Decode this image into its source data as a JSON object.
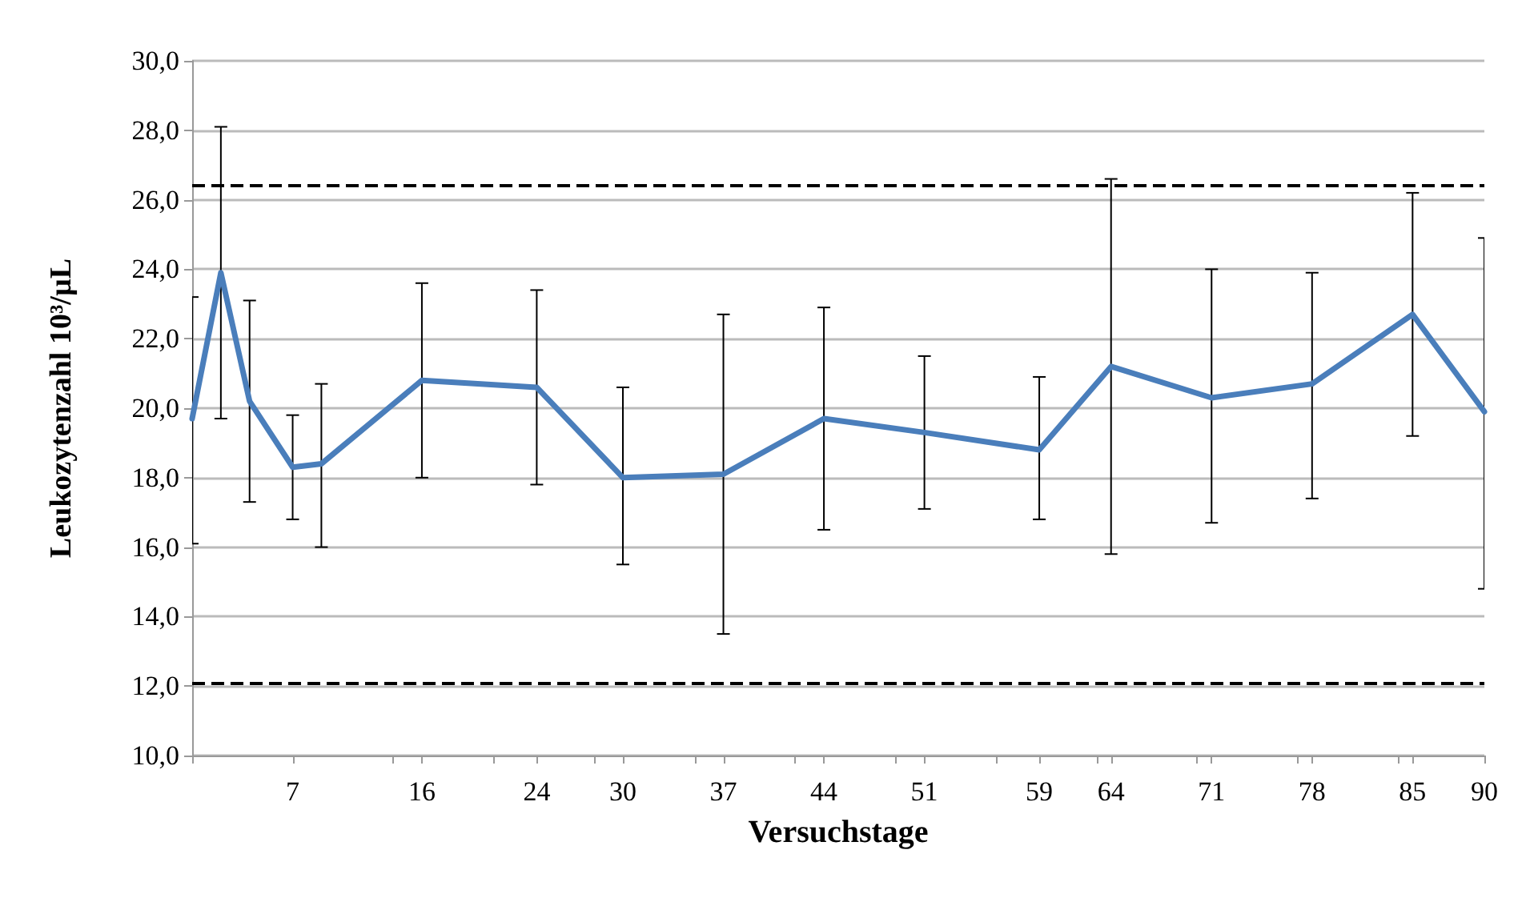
{
  "chart_data": {
    "type": "line",
    "xlabel": "Versuchstage",
    "ylabel": "Leukozytenzahl 10³/µL",
    "x": [
      0,
      2,
      4,
      7,
      9,
      16,
      24,
      30,
      37,
      44,
      51,
      59,
      64,
      71,
      78,
      85,
      90
    ],
    "series": [
      {
        "color": "#4a7ebb",
        "values": [
          19.7,
          23.9,
          20.2,
          18.3,
          18.4,
          20.8,
          20.6,
          18.0,
          18.1,
          19.7,
          19.3,
          18.8,
          21.2,
          20.3,
          20.7,
          22.7,
          19.9
        ],
        "errors": [
          [
            16.1,
            23.2
          ],
          [
            19.7,
            28.1
          ],
          [
            17.3,
            23.1
          ],
          [
            16.8,
            19.8
          ],
          [
            16.0,
            20.7
          ],
          [
            18.0,
            23.6
          ],
          [
            17.8,
            23.4
          ],
          [
            15.5,
            20.6
          ],
          [
            13.5,
            22.7
          ],
          [
            16.5,
            22.9
          ],
          [
            17.1,
            21.5
          ],
          [
            16.8,
            20.9
          ],
          [
            15.8,
            26.6
          ],
          [
            16.7,
            24.0
          ],
          [
            17.4,
            23.9
          ],
          [
            19.2,
            26.2
          ],
          [
            14.8,
            24.9
          ]
        ]
      }
    ],
    "xlim": [
      0,
      90
    ],
    "xticks": [
      {
        "value": 0,
        "label": null
      },
      {
        "value": 7,
        "label": "7"
      },
      {
        "value": 14,
        "label": null
      },
      {
        "value": 16,
        "label": "16"
      },
      {
        "value": 21,
        "label": null
      },
      {
        "value": 24,
        "label": "24"
      },
      {
        "value": 28,
        "label": null
      },
      {
        "value": 30,
        "label": "30"
      },
      {
        "value": 35,
        "label": null
      },
      {
        "value": 37,
        "label": "37"
      },
      {
        "value": 42,
        "label": null
      },
      {
        "value": 44,
        "label": "44"
      },
      {
        "value": 49,
        "label": null
      },
      {
        "value": 51,
        "label": "51"
      },
      {
        "value": 56,
        "label": null
      },
      {
        "value": 59,
        "label": "59"
      },
      {
        "value": 63,
        "label": null
      },
      {
        "value": 64,
        "label": "64"
      },
      {
        "value": 70,
        "label": null
      },
      {
        "value": 71,
        "label": "71"
      },
      {
        "value": 77,
        "label": null
      },
      {
        "value": 78,
        "label": "78"
      },
      {
        "value": 84,
        "label": null
      },
      {
        "value": 85,
        "label": "85"
      },
      {
        "value": 90,
        "label": "90"
      }
    ],
    "ylim": [
      10,
      30
    ],
    "yticks": [
      {
        "value": 10,
        "label": "10,0"
      },
      {
        "value": 12,
        "label": "12,0"
      },
      {
        "value": 14,
        "label": "14,0"
      },
      {
        "value": 16,
        "label": "16,0"
      },
      {
        "value": 18,
        "label": "18,0"
      },
      {
        "value": 20,
        "label": "20,0"
      },
      {
        "value": 22,
        "label": "22,0"
      },
      {
        "value": 24,
        "label": "24,0"
      },
      {
        "value": 26,
        "label": "26,0"
      },
      {
        "value": 28,
        "label": "28,0"
      },
      {
        "value": 30,
        "label": "30,0"
      }
    ],
    "ref_lines": [
      {
        "axis": "y",
        "value": 26.4,
        "color": "#000000",
        "line_style": "dashed"
      },
      {
        "axis": "y",
        "value": 12.1,
        "color": "#000000",
        "line_style": "dashed"
      }
    ],
    "grid": "y",
    "marker": "none",
    "line_style": "solid"
  }
}
